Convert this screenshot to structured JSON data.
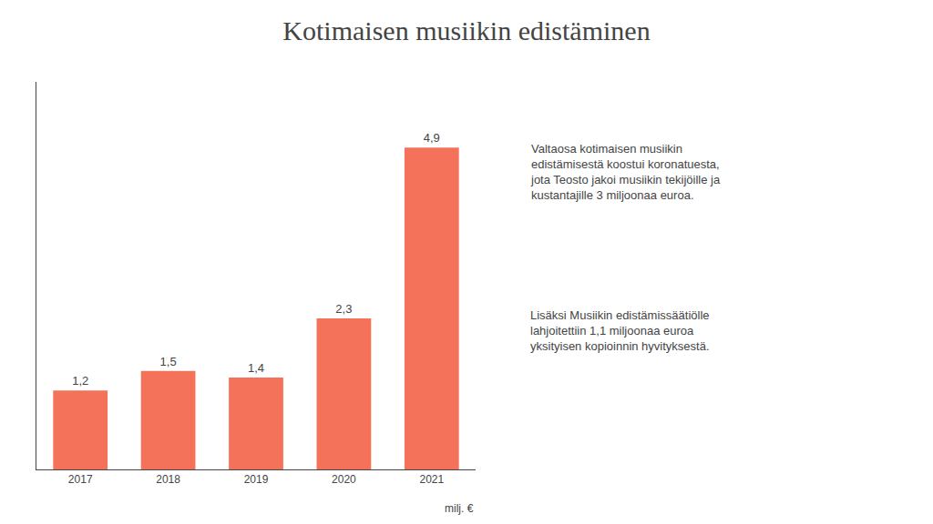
{
  "chart_data": {
    "type": "bar",
    "title": "Kotimaisen musiikin edistäminen",
    "categories": [
      "2017",
      "2018",
      "2019",
      "2020",
      "2021"
    ],
    "values": [
      1.2,
      1.5,
      1.4,
      2.3,
      4.9
    ],
    "value_labels": [
      "1,2",
      "1,5",
      "1,4",
      "2,3",
      "4,9"
    ],
    "data_labels": true,
    "color": "#F4725A",
    "ylim": [
      0,
      5.9
    ],
    "yticks": [],
    "tick_labels": "x",
    "grid": false,
    "ylabel": "milj. €",
    "annotations": [
      "Valtaosa kotimaisen musiikin\nedistämisestä koostui koronatuesta,\njota Teosto jakoi musiikin tekijöille ja\nkustantajille 3 miljoonaa euroa.",
      "Lisäksi Musiikin edistämissäätiölle\nlahjoitettiin 1,1 miljoonaa euroa\nyksityisen kopioinnin hyvityksestä."
    ]
  }
}
